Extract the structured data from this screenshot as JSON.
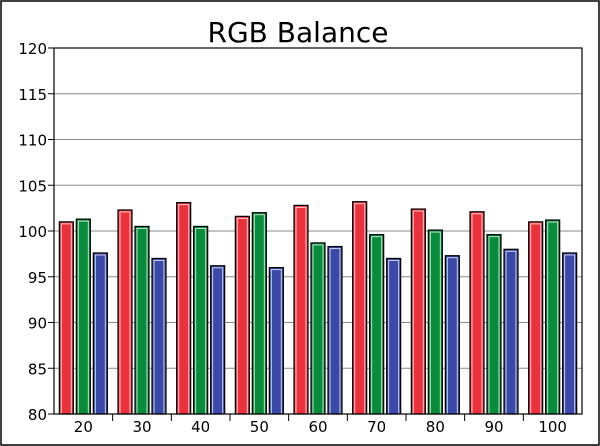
{
  "chart_data": {
    "type": "bar",
    "title": "RGB Balance",
    "xlabel": "",
    "ylabel": "",
    "categories": [
      "20",
      "30",
      "40",
      "50",
      "60",
      "70",
      "80",
      "90",
      "100"
    ],
    "ylim": [
      80,
      120
    ],
    "yticks": [
      "80",
      "85",
      "90",
      "95",
      "100",
      "105",
      "110",
      "115",
      "120"
    ],
    "grid": true,
    "legend": "none",
    "series": [
      {
        "color": "#e8323c",
        "values": [
          101.0,
          102.3,
          103.1,
          101.6,
          102.8,
          103.2,
          102.4,
          102.1,
          101.0
        ]
      },
      {
        "color": "#0a8a3c",
        "values": [
          101.3,
          100.5,
          100.5,
          102.0,
          98.7,
          99.6,
          100.1,
          99.6,
          101.2
        ]
      },
      {
        "color": "#3a48a6",
        "values": [
          97.6,
          97.0,
          96.2,
          96.0,
          98.3,
          97.0,
          97.3,
          98.0,
          97.6
        ]
      }
    ]
  }
}
